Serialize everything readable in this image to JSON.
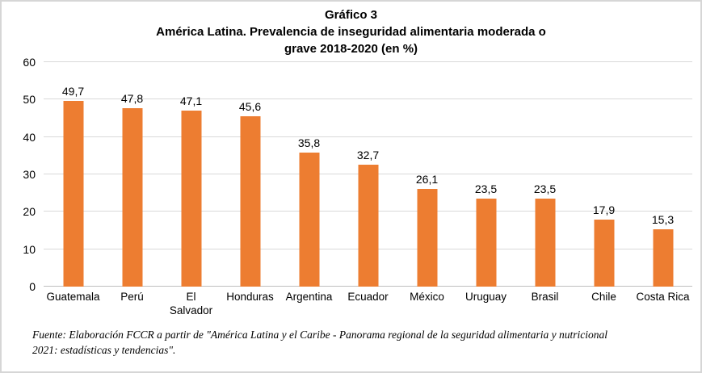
{
  "chart_data": {
    "type": "bar",
    "title": "Gráfico 3. América Latina. Prevalencia de inseguridad alimentaria moderada o grave 2018-2020 (en %)",
    "title_lines": [
      "Gráfico 3",
      "América Latina. Prevalencia de inseguridad alimentaria moderada o",
      "grave 2018-2020 (en %)"
    ],
    "categories": [
      "Guatemala",
      "Perú",
      "El Salvador",
      "Honduras",
      "Argentina",
      "Ecuador",
      "México",
      "Uruguay",
      "Brasil",
      "Chile",
      "Costa Rica"
    ],
    "category_display": [
      "Guatemala",
      "Perú",
      "El\nSalvador",
      "Honduras",
      "Argentina",
      "Ecuador",
      "México",
      "Uruguay",
      "Brasil",
      "Chile",
      "Costa Rica"
    ],
    "values": [
      49.7,
      47.8,
      47.1,
      45.6,
      35.8,
      32.7,
      26.1,
      23.5,
      23.5,
      17.9,
      15.3
    ],
    "value_labels": [
      "49,7",
      "47,8",
      "47,1",
      "45,6",
      "35,8",
      "32,7",
      "26,1",
      "23,5",
      "23,5",
      "17,9",
      "15,3"
    ],
    "xlabel": "",
    "ylabel": "",
    "ylim": [
      0,
      60
    ],
    "yticks": [
      0,
      10,
      20,
      30,
      40,
      50,
      60
    ],
    "grid": true,
    "legend": "none",
    "bar_color": "#ED7D31",
    "gridline_color": "#D9D9D9",
    "axis_line_color": "#BFBFBF",
    "label_color": "#000000"
  },
  "footer": {
    "source": "Fuente: Elaboración FCCR a partir de \"América Latina y el Caribe - Panorama regional de la seguridad alimentaria y nutricional 2021: estadísticas y tendencias\".",
    "source_lines": [
      "Fuente: Elaboración FCCR a partir de \"América Latina y el Caribe - Panorama regional de la seguridad alimentaria y nutricional",
      "2021: estadísticas y tendencias\"."
    ]
  }
}
